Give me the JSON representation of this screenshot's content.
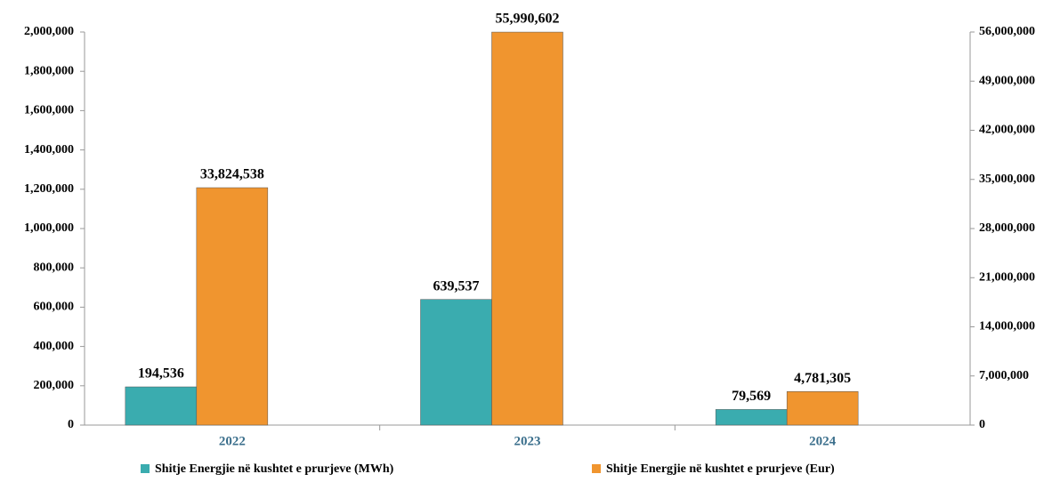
{
  "chart_data": {
    "type": "bar",
    "categories": [
      "2022",
      "2023",
      "2024"
    ],
    "series": [
      {
        "name": "Shitje Energjie në kushtet e prurjeve (MWh)",
        "color": "#3aacaf",
        "values": [
          194536,
          639537,
          79569
        ],
        "value_labels": [
          "194,536",
          "639,537",
          "79,569"
        ]
      },
      {
        "name": "Shitje Energjie në kushtet e prurjeve (Eur)",
        "color": "#f0952f",
        "axis": "y2",
        "values": [
          33824538,
          55990602,
          4781305
        ],
        "value_labels": [
          "33,824,538",
          "55,990,602",
          "4,781,305"
        ]
      }
    ],
    "ylim": [
      0,
      2000000
    ],
    "yticks": [
      0,
      {
        "value": 200000,
        "label": "200,000"
      },
      {
        "value": 400000,
        "label": "400,000"
      },
      {
        "value": 600000,
        "label": "600,000"
      },
      {
        "value": 800000,
        "label": "800,000"
      },
      {
        "value": 1000000,
        "label": "1,000,000"
      },
      {
        "value": 1200000,
        "label": "1,200,000"
      },
      {
        "value": 1400000,
        "label": "1,400,000"
      },
      {
        "value": 1600000,
        "label": "1,600,000"
      },
      {
        "value": 1800000,
        "label": "1,800,000"
      },
      {
        "value": 2000000,
        "label": "2,000,000"
      }
    ],
    "y2lim": [
      0,
      56000000
    ],
    "y2ticks": [
      0,
      {
        "value": 7000000,
        "label": "7,000,000"
      },
      {
        "value": 14000000,
        "label": "14,000,000"
      },
      {
        "value": 21000000,
        "label": "21,000,000"
      },
      {
        "value": 28000000,
        "label": "28,000,000"
      },
      {
        "value": 35000000,
        "label": "35,000,000"
      },
      {
        "value": 42000000,
        "label": "42,000,000"
      },
      {
        "value": 49000000,
        "label": "49,000,000"
      },
      {
        "value": 56000000,
        "label": "56,000,000"
      }
    ],
    "legend": "bottom"
  }
}
